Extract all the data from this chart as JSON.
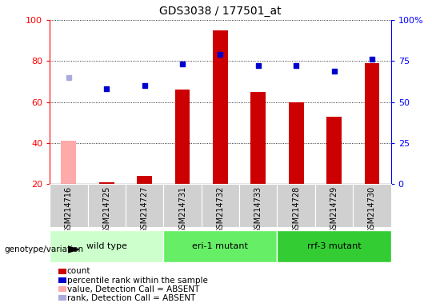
{
  "title": "GDS3038 / 177501_at",
  "samples": [
    "GSM214716",
    "GSM214725",
    "GSM214727",
    "GSM214731",
    "GSM214732",
    "GSM214733",
    "GSM214728",
    "GSM214729",
    "GSM214730"
  ],
  "count_values": [
    41,
    21,
    24,
    66,
    95,
    65,
    60,
    53,
    79
  ],
  "count_absent": [
    true,
    false,
    false,
    false,
    false,
    false,
    false,
    false,
    false
  ],
  "percentile_values": [
    65,
    58,
    60,
    73,
    79,
    72,
    72,
    69,
    76
  ],
  "percentile_absent": [
    true,
    false,
    false,
    false,
    false,
    false,
    false,
    false,
    false
  ],
  "groups": [
    {
      "label": "wild type",
      "indices": [
        0,
        1,
        2
      ],
      "color": "#ccffcc"
    },
    {
      "label": "eri-1 mutant",
      "indices": [
        3,
        4,
        5
      ],
      "color": "#66ee66"
    },
    {
      "label": "rrf-3 mutant",
      "indices": [
        6,
        7,
        8
      ],
      "color": "#33cc33"
    }
  ],
  "ylim_left": [
    20,
    100
  ],
  "ylim_right": [
    0,
    100
  ],
  "yticks_left": [
    20,
    40,
    60,
    80,
    100
  ],
  "yticks_right": [
    0,
    25,
    50,
    75,
    100
  ],
  "ytick_labels_right": [
    "0",
    "25",
    "50",
    "75",
    "100%"
  ],
  "bar_color_normal": "#cc0000",
  "bar_color_absent": "#ffaaaa",
  "point_color_normal": "#0000cc",
  "point_color_absent": "#aaaadd",
  "bg_color_sample": "#d0d0d0",
  "group_label_text": "genotype/variation",
  "legend_items": [
    {
      "color": "#cc0000",
      "label": "count"
    },
    {
      "color": "#0000cc",
      "label": "percentile rank within the sample"
    },
    {
      "color": "#ffaaaa",
      "label": "value, Detection Call = ABSENT"
    },
    {
      "color": "#aaaadd",
      "label": "rank, Detection Call = ABSENT"
    }
  ]
}
